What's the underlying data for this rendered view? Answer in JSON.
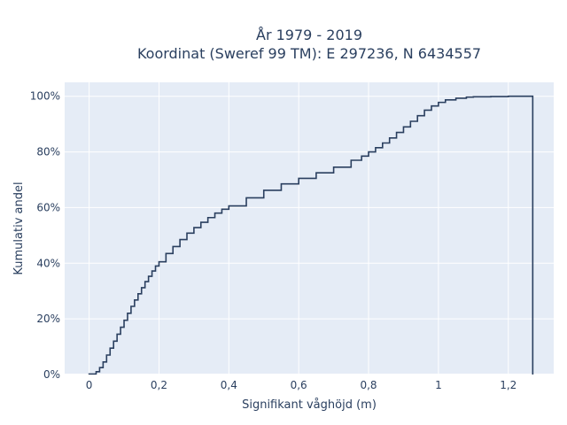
{
  "chart_data": {
    "type": "line",
    "title_line1": "År 1979 - 2019",
    "title_line2": "Koordinat (Sweref 99 TM): E 297236, N 6434557",
    "xlabel": "Signifikant våghöjd (m)",
    "ylabel": "Kumulativ andel",
    "xlim": [
      -0.07,
      1.33
    ],
    "ylim": [
      0,
      1.05
    ],
    "x_ticks": [
      {
        "value": 0,
        "label": "0"
      },
      {
        "value": 0.2,
        "label": "0,2"
      },
      {
        "value": 0.4,
        "label": "0,4"
      },
      {
        "value": 0.6,
        "label": "0,6"
      },
      {
        "value": 0.8,
        "label": "0,8"
      },
      {
        "value": 1.0,
        "label": "1"
      },
      {
        "value": 1.2,
        "label": "1,2"
      }
    ],
    "y_ticks": [
      {
        "value": 0,
        "label": "0%"
      },
      {
        "value": 0.2,
        "label": "20%"
      },
      {
        "value": 0.4,
        "label": "40%"
      },
      {
        "value": 0.6,
        "label": "60%"
      },
      {
        "value": 0.8,
        "label": "80%"
      },
      {
        "value": 1.0,
        "label": "100%"
      }
    ],
    "grid": true,
    "line_color": "#2a3f5f",
    "plot_bg": "#e5ecf6",
    "step": true,
    "series": [
      {
        "x": [
          0.0,
          0.02,
          0.03,
          0.04,
          0.05,
          0.06,
          0.07,
          0.08,
          0.09,
          0.1,
          0.11,
          0.12,
          0.13,
          0.14,
          0.15,
          0.16,
          0.17,
          0.18,
          0.19,
          0.2,
          0.22,
          0.24,
          0.26,
          0.28,
          0.3,
          0.32,
          0.34,
          0.36,
          0.38,
          0.4,
          0.45,
          0.5,
          0.55,
          0.6,
          0.65,
          0.7,
          0.75,
          0.78,
          0.8,
          0.82,
          0.84,
          0.86,
          0.88,
          0.9,
          0.92,
          0.94,
          0.96,
          0.98,
          1.0,
          1.02,
          1.05,
          1.08,
          1.1,
          1.15,
          1.2,
          1.27
        ],
        "y": [
          0.002,
          0.01,
          0.025,
          0.045,
          0.07,
          0.095,
          0.12,
          0.145,
          0.17,
          0.195,
          0.22,
          0.245,
          0.268,
          0.29,
          0.312,
          0.334,
          0.353,
          0.372,
          0.39,
          0.405,
          0.435,
          0.46,
          0.485,
          0.508,
          0.528,
          0.547,
          0.564,
          0.58,
          0.594,
          0.606,
          0.635,
          0.662,
          0.685,
          0.705,
          0.725,
          0.745,
          0.77,
          0.785,
          0.8,
          0.815,
          0.832,
          0.85,
          0.87,
          0.89,
          0.91,
          0.93,
          0.95,
          0.965,
          0.978,
          0.987,
          0.993,
          0.997,
          0.998,
          0.999,
          1.0,
          1.0
        ]
      }
    ]
  }
}
